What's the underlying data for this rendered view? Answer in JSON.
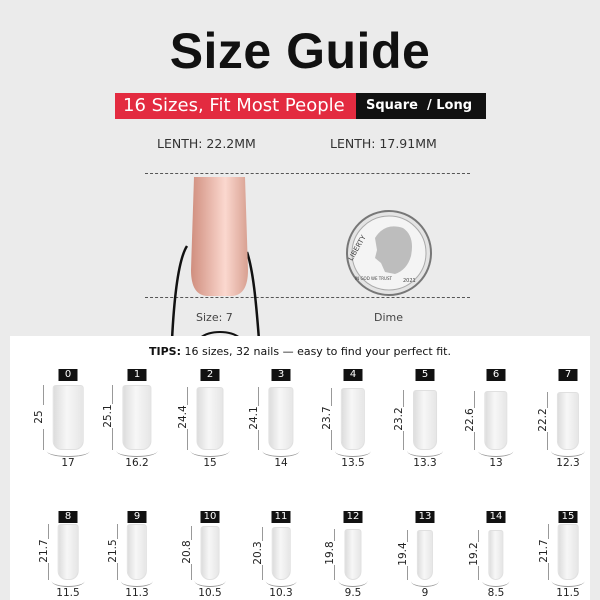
{
  "title": "Size Guide",
  "banner": {
    "tagline": "16 Sizes, Fit Most People",
    "shape": "Square",
    "length": "/ Long"
  },
  "comparison": {
    "nail_length": "LENTH: 22.2MM",
    "dime_length": "LENTH: 17.91MM",
    "nail_caption": "Size: 7",
    "dime_caption": "Dime",
    "dime_text": [
      "LIBERTY",
      "IN GOD WE TRUST",
      "2021"
    ]
  },
  "colors": {
    "accent": "#e32b40",
    "nail": "#eab0a2"
  },
  "tips": {
    "label": "TIPS:",
    "text": " 16 sizes, 32 nails — easy to find your perfect fit."
  },
  "sizes": [
    {
      "size": "0",
      "length": "25",
      "width": "17"
    },
    {
      "size": "1",
      "length": "25.1",
      "width": "16.2"
    },
    {
      "size": "2",
      "length": "24.4",
      "width": "15"
    },
    {
      "size": "3",
      "length": "24.1",
      "width": "14"
    },
    {
      "size": "4",
      "length": "23.7",
      "width": "13.5"
    },
    {
      "size": "5",
      "length": "23.2",
      "width": "13.3"
    },
    {
      "size": "6",
      "length": "22.6",
      "width": "13"
    },
    {
      "size": "7",
      "length": "22.2",
      "width": "12.3"
    },
    {
      "size": "8",
      "length": "21.7",
      "width": "11.5"
    },
    {
      "size": "9",
      "length": "21.5",
      "width": "11.3"
    },
    {
      "size": "10",
      "length": "20.8",
      "width": "10.5"
    },
    {
      "size": "11",
      "length": "20.3",
      "width": "10.3"
    },
    {
      "size": "12",
      "length": "19.8",
      "width": "9.5"
    },
    {
      "size": "13",
      "length": "19.4",
      "width": "9"
    },
    {
      "size": "14",
      "length": "19.2",
      "width": "8.5"
    },
    {
      "size": "15",
      "length": "21.7",
      "width": "11.5"
    }
  ]
}
